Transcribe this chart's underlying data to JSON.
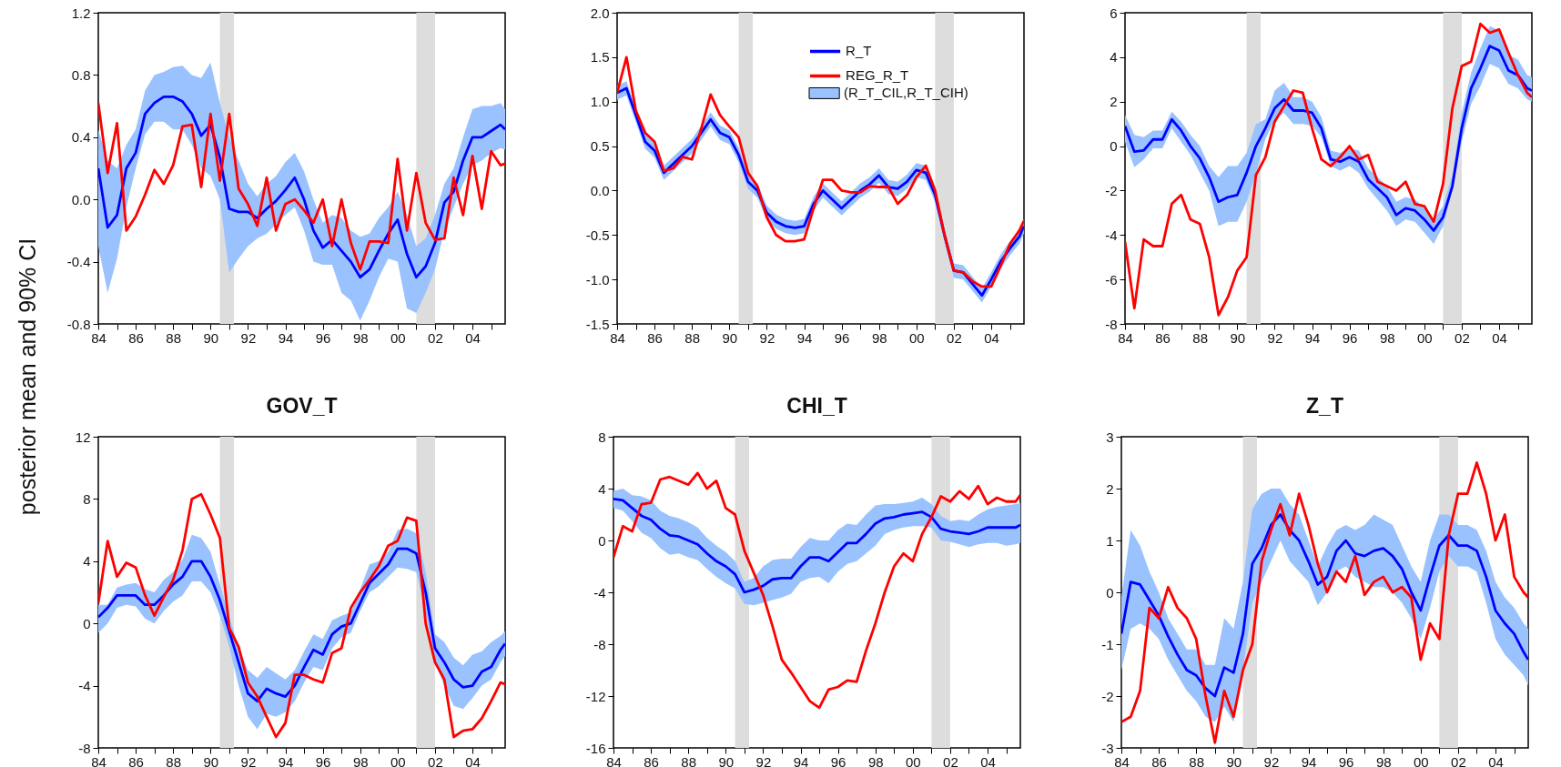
{
  "chart_data": [
    {
      "type": "line",
      "ylabel": "posterior mean and 90% CI",
      "x": [
        1984,
        1984.5,
        1985,
        1985.5,
        1986,
        1986.5,
        1987,
        1987.5,
        1988,
        1988.5,
        1989,
        1989.5,
        1990,
        1990.5,
        1991,
        1991.5,
        1992,
        1992.5,
        1993,
        1993.5,
        1994,
        1994.5,
        1995,
        1995.5,
        1996,
        1996.5,
        1997,
        1997.5,
        1998,
        1998.5,
        1999,
        1999.5,
        2000,
        2000.5,
        2001,
        2001.5,
        2002,
        2002.5,
        2003,
        2003.5,
        2004,
        2004.5,
        2005,
        2005.5,
        2005.75
      ],
      "xlim": [
        1984,
        2005.75
      ],
      "xticks": [
        {
          "value": 1984,
          "label": "84"
        },
        {
          "value": 1985,
          "label": null
        },
        {
          "value": 1986,
          "label": "86"
        },
        {
          "value": 1987,
          "label": null
        },
        {
          "value": 1988,
          "label": "88"
        },
        {
          "value": 1989,
          "label": null
        },
        {
          "value": 1990,
          "label": "90"
        },
        {
          "value": 1991,
          "label": null
        },
        {
          "value": 1992,
          "label": "92"
        },
        {
          "value": 1993,
          "label": null
        },
        {
          "value": 1994,
          "label": "94"
        },
        {
          "value": 1995,
          "label": null
        },
        {
          "value": 1996,
          "label": "96"
        },
        {
          "value": 1997,
          "label": null
        },
        {
          "value": 1998,
          "label": "98"
        },
        {
          "value": 1999,
          "label": null
        },
        {
          "value": 2000,
          "label": "00"
        },
        {
          "value": 2001,
          "label": null
        },
        {
          "value": 2002,
          "label": "02"
        },
        {
          "value": 2003,
          "label": null
        },
        {
          "value": 2004,
          "label": "04"
        },
        {
          "value": 2005,
          "label": null
        }
      ],
      "ylim": [
        -0.8,
        1.2
      ],
      "yticks": [
        1.2,
        0.8,
        0.4,
        {
          "value": 0,
          "label": "0.0"
        },
        -0.4,
        -0.8
      ],
      "bands": [
        {
          "axis": "x",
          "from": 1990.5,
          "to": 1991.25,
          "color": "#dddddd"
        },
        {
          "axis": "x",
          "from": 2001,
          "to": 2002,
          "color": "#dddddd"
        }
      ],
      "series": [
        {
          "color": "#0000ff",
          "values": [
            0.2,
            -0.18,
            -0.1,
            0.2,
            0.3,
            0.55,
            0.62,
            0.66,
            0.66,
            0.63,
            0.55,
            0.41,
            0.48,
            0.27,
            -0.06,
            -0.08,
            -0.08,
            -0.12,
            -0.06,
            -0.01,
            0.06,
            0.14,
            0.0,
            -0.2,
            -0.31,
            -0.26,
            -0.33,
            -0.4,
            -0.5,
            -0.45,
            -0.33,
            -0.22,
            -0.13,
            -0.35,
            -0.5,
            -0.43,
            -0.28,
            -0.02,
            0.05,
            0.25,
            0.4,
            0.4,
            0.44,
            0.48,
            0.45
          ],
          "lower": [
            -0.3,
            -0.6,
            -0.38,
            -0.05,
            0.2,
            0.42,
            0.5,
            0.5,
            0.45,
            0.45,
            0.35,
            0.2,
            0.15,
            0.0,
            -0.47,
            -0.38,
            -0.3,
            -0.25,
            -0.22,
            -0.16,
            -0.1,
            -0.05,
            -0.2,
            -0.4,
            -0.42,
            -0.42,
            -0.6,
            -0.65,
            -0.78,
            -0.65,
            -0.5,
            -0.38,
            -0.4,
            -0.7,
            -0.73,
            -0.6,
            -0.45,
            -0.2,
            -0.05,
            0.1,
            0.22,
            0.25,
            0.3,
            0.33,
            0.32
          ],
          "upper": [
            0.45,
            0.25,
            0.2,
            0.35,
            0.45,
            0.7,
            0.8,
            0.82,
            0.85,
            0.86,
            0.8,
            0.78,
            0.88,
            0.62,
            0.4,
            0.25,
            0.1,
            0.02,
            0.1,
            0.15,
            0.24,
            0.3,
            0.18,
            0.0,
            -0.15,
            -0.1,
            -0.12,
            -0.2,
            -0.24,
            -0.22,
            -0.12,
            -0.05,
            0.05,
            -0.1,
            -0.3,
            -0.25,
            -0.1,
            0.1,
            0.2,
            0.4,
            0.58,
            0.6,
            0.6,
            0.62,
            0.58
          ]
        },
        {
          "color": "#ff0000",
          "values": [
            0.62,
            0.17,
            0.49,
            -0.2,
            -0.11,
            0.03,
            0.19,
            0.1,
            0.22,
            0.47,
            0.48,
            0.08,
            0.55,
            0.12,
            0.55,
            0.07,
            -0.03,
            -0.17,
            0.14,
            -0.2,
            -0.03,
            0.0,
            -0.07,
            -0.15,
            0.0,
            -0.3,
            0.0,
            -0.28,
            -0.45,
            -0.27,
            -0.27,
            -0.28,
            0.26,
            -0.2,
            0.17,
            -0.15,
            -0.26,
            -0.25,
            0.14,
            -0.1,
            0.28,
            -0.06,
            0.31,
            0.22,
            0.23
          ]
        }
      ]
    },
    {
      "type": "line",
      "legend": "top",
      "annotations": [
        "(R_T_CIL,R_T_CIH)"
      ],
      "x": [
        1984,
        1984.5,
        1985,
        1985.5,
        1986,
        1986.5,
        1987,
        1987.5,
        1988,
        1988.5,
        1989,
        1989.5,
        1990,
        1990.5,
        1991,
        1991.5,
        1992,
        1992.5,
        1993,
        1993.5,
        1994,
        1994.5,
        1995,
        1995.5,
        1996,
        1996.5,
        1997,
        1997.5,
        1998,
        1998.5,
        1999,
        1999.5,
        2000,
        2000.5,
        2001,
        2001.5,
        2002,
        2002.5,
        2003,
        2003.5,
        2004,
        2004.5,
        2005,
        2005.5,
        2005.75
      ],
      "xlim": [
        1984,
        2005.75
      ],
      "xticks": [
        {
          "value": 1984,
          "label": "84"
        },
        {
          "value": 1985,
          "label": null
        },
        {
          "value": 1986,
          "label": "86"
        },
        {
          "value": 1987,
          "label": null
        },
        {
          "value": 1988,
          "label": "88"
        },
        {
          "value": 1989,
          "label": null
        },
        {
          "value": 1990,
          "label": "90"
        },
        {
          "value": 1991,
          "label": null
        },
        {
          "value": 1992,
          "label": "92"
        },
        {
          "value": 1993,
          "label": null
        },
        {
          "value": 1994,
          "label": "94"
        },
        {
          "value": 1995,
          "label": null
        },
        {
          "value": 1996,
          "label": "96"
        },
        {
          "value": 1997,
          "label": null
        },
        {
          "value": 1998,
          "label": "98"
        },
        {
          "value": 1999,
          "label": null
        },
        {
          "value": 2000,
          "label": "00"
        },
        {
          "value": 2001,
          "label": null
        },
        {
          "value": 2002,
          "label": "02"
        },
        {
          "value": 2003,
          "label": null
        },
        {
          "value": 2004,
          "label": "04"
        },
        {
          "value": 2005,
          "label": null
        }
      ],
      "ylim": [
        -1.5,
        2.0
      ],
      "yticks": [
        {
          "value": 2,
          "label": "2.0"
        },
        1.5,
        {
          "value": 1,
          "label": "1.0"
        },
        0.5,
        {
          "value": 0,
          "label": "0.0"
        },
        -0.5,
        {
          "value": -1,
          "label": "-1.0"
        },
        -1.5
      ],
      "bands": [
        {
          "axis": "x",
          "from": 1990.5,
          "to": 1991.25,
          "color": "#dddddd"
        },
        {
          "axis": "x",
          "from": 2001,
          "to": 2002,
          "color": "#dddddd"
        }
      ],
      "series": [
        {
          "name": "R_T",
          "color": "#0000ff",
          "values": [
            1.1,
            1.15,
            0.85,
            0.55,
            0.45,
            0.2,
            0.3,
            0.4,
            0.5,
            0.65,
            0.8,
            0.65,
            0.6,
            0.4,
            0.1,
            0.0,
            -0.25,
            -0.35,
            -0.4,
            -0.42,
            -0.4,
            -0.15,
            0.0,
            -0.1,
            -0.2,
            -0.1,
            0.0,
            0.07,
            0.17,
            0.04,
            0.02,
            0.1,
            0.23,
            0.2,
            -0.05,
            -0.5,
            -0.9,
            -0.92,
            -1.05,
            -1.18,
            -1.0,
            -0.8,
            -0.65,
            -0.52,
            -0.4
          ],
          "lower": [
            1.02,
            1.07,
            0.77,
            0.47,
            0.37,
            0.12,
            0.22,
            0.32,
            0.42,
            0.57,
            0.72,
            0.57,
            0.52,
            0.32,
            0.02,
            -0.08,
            -0.33,
            -0.43,
            -0.48,
            -0.5,
            -0.48,
            -0.23,
            -0.08,
            -0.18,
            -0.28,
            -0.18,
            -0.08,
            -0.01,
            0.09,
            -0.04,
            -0.06,
            0.02,
            0.15,
            0.12,
            -0.13,
            -0.58,
            -0.98,
            -1.0,
            -1.13,
            -1.26,
            -1.08,
            -0.88,
            -0.73,
            -0.6,
            -0.48
          ],
          "upper": [
            1.18,
            1.23,
            0.93,
            0.63,
            0.53,
            0.28,
            0.38,
            0.48,
            0.58,
            0.73,
            0.88,
            0.73,
            0.68,
            0.48,
            0.18,
            0.08,
            -0.17,
            -0.27,
            -0.32,
            -0.34,
            -0.32,
            -0.07,
            0.08,
            -0.02,
            -0.12,
            -0.02,
            0.08,
            0.15,
            0.25,
            0.12,
            0.1,
            0.18,
            0.31,
            0.28,
            0.03,
            -0.42,
            -0.82,
            -0.84,
            -0.97,
            -1.1,
            -0.92,
            -0.72,
            -0.57,
            -0.44,
            -0.32
          ]
        },
        {
          "name": "REG_R_T",
          "color": "#ff0000",
          "values": [
            1.1,
            1.5,
            0.9,
            0.65,
            0.55,
            0.22,
            0.25,
            0.38,
            0.35,
            0.7,
            1.08,
            0.85,
            0.72,
            0.6,
            0.2,
            0.05,
            -0.3,
            -0.5,
            -0.57,
            -0.57,
            -0.55,
            -0.2,
            0.12,
            0.12,
            0.0,
            -0.02,
            -0.02,
            0.05,
            0.04,
            0.04,
            -0.15,
            -0.05,
            0.15,
            0.28,
            0.0,
            -0.5,
            -0.9,
            -0.92,
            -1.02,
            -1.08,
            -1.08,
            -0.85,
            -0.6,
            -0.45,
            -0.34
          ]
        }
      ]
    },
    {
      "type": "line",
      "x": [
        1984,
        1984.5,
        1985,
        1985.5,
        1986,
        1986.5,
        1987,
        1987.5,
        1988,
        1988.5,
        1989,
        1989.5,
        1990,
        1990.5,
        1991,
        1991.5,
        1992,
        1992.5,
        1993,
        1993.5,
        1994,
        1994.5,
        1995,
        1995.5,
        1996,
        1996.5,
        1997,
        1997.5,
        1998,
        1998.5,
        1999,
        1999.5,
        2000,
        2000.5,
        2001,
        2001.5,
        2002,
        2002.5,
        2003,
        2003.5,
        2004,
        2004.5,
        2005,
        2005.5,
        2005.75
      ],
      "xlim": [
        1984,
        2005.75
      ],
      "xticks": [
        {
          "value": 1984,
          "label": "84"
        },
        {
          "value": 1985,
          "label": null
        },
        {
          "value": 1986,
          "label": "86"
        },
        {
          "value": 1987,
          "label": null
        },
        {
          "value": 1988,
          "label": "88"
        },
        {
          "value": 1989,
          "label": null
        },
        {
          "value": 1990,
          "label": "90"
        },
        {
          "value": 1991,
          "label": null
        },
        {
          "value": 1992,
          "label": "92"
        },
        {
          "value": 1993,
          "label": null
        },
        {
          "value": 1994,
          "label": "94"
        },
        {
          "value": 1995,
          "label": null
        },
        {
          "value": 1996,
          "label": "96"
        },
        {
          "value": 1997,
          "label": null
        },
        {
          "value": 1998,
          "label": "98"
        },
        {
          "value": 1999,
          "label": null
        },
        {
          "value": 2000,
          "label": "00"
        },
        {
          "value": 2001,
          "label": null
        },
        {
          "value": 2002,
          "label": "02"
        },
        {
          "value": 2003,
          "label": null
        },
        {
          "value": 2004,
          "label": "04"
        },
        {
          "value": 2005,
          "label": null
        }
      ],
      "ylim": [
        -8,
        6
      ],
      "yticks": [
        6,
        4,
        2,
        0,
        -2,
        -4,
        -6,
        -8
      ],
      "bands": [
        {
          "axis": "x",
          "from": 1990.5,
          "to": 1991.25,
          "color": "#dddddd"
        },
        {
          "axis": "x",
          "from": 2001,
          "to": 2002,
          "color": "#dddddd"
        }
      ],
      "series": [
        {
          "color": "#0000ff",
          "values": [
            0.9,
            -0.25,
            -0.2,
            0.3,
            0.3,
            1.2,
            0.7,
            0.0,
            -0.55,
            -1.4,
            -2.5,
            -2.3,
            -2.2,
            -1.2,
            0.0,
            0.8,
            1.7,
            2.1,
            1.6,
            1.6,
            1.5,
            0.8,
            -0.6,
            -0.7,
            -0.5,
            -0.7,
            -1.5,
            -1.9,
            -2.3,
            -3.1,
            -2.8,
            -2.9,
            -3.3,
            -3.8,
            -3.2,
            -1.8,
            0.8,
            2.6,
            3.5,
            4.5,
            4.3,
            3.4,
            3.2,
            2.6,
            2.5
          ],
          "lower": [
            0.2,
            -0.95,
            -0.6,
            -0.1,
            -0.1,
            0.8,
            0.2,
            -0.4,
            -1.2,
            -2.0,
            -3.6,
            -3.4,
            -3.4,
            -2.5,
            -1.2,
            0.3,
            1.2,
            1.5,
            1.0,
            1.0,
            0.9,
            0.4,
            -0.9,
            -1.1,
            -0.9,
            -1.2,
            -1.9,
            -2.4,
            -2.9,
            -3.6,
            -3.3,
            -3.4,
            -3.9,
            -4.4,
            -3.6,
            -2.0,
            0.2,
            1.9,
            2.7,
            3.7,
            3.5,
            2.8,
            2.6,
            2.1,
            2.0
          ],
          "upper": [
            1.4,
            0.5,
            0.4,
            0.7,
            0.7,
            1.55,
            1.1,
            0.5,
            0.0,
            -0.9,
            -1.4,
            -0.9,
            -0.9,
            -0.3,
            1.0,
            1.2,
            2.5,
            2.85,
            2.2,
            2.2,
            2.0,
            1.3,
            -0.2,
            -0.3,
            -0.1,
            -0.2,
            -1.0,
            -1.4,
            -1.8,
            -2.5,
            -2.3,
            -2.4,
            -2.8,
            -3.3,
            -2.7,
            -1.3,
            1.5,
            3.3,
            4.4,
            5.4,
            5.2,
            4.1,
            3.9,
            3.2,
            3.1
          ]
        },
        {
          "color": "#ff0000",
          "values": [
            -4.3,
            -7.3,
            -4.2,
            -4.5,
            -4.5,
            -2.6,
            -2.2,
            -3.3,
            -3.5,
            -5.0,
            -7.6,
            -6.8,
            -5.6,
            -5.0,
            -1.3,
            -0.5,
            1.1,
            1.8,
            2.5,
            2.4,
            0.8,
            -0.6,
            -0.9,
            -0.5,
            0.0,
            -0.6,
            -0.4,
            -1.6,
            -1.8,
            -2.0,
            -1.6,
            -2.6,
            -2.7,
            -3.4,
            -1.7,
            1.7,
            3.6,
            3.8,
            5.5,
            5.1,
            5.25,
            4.2,
            3.2,
            2.4,
            2.2
          ]
        }
      ]
    },
    {
      "type": "line",
      "title": "GOV_T",
      "x": [
        1984,
        1984.5,
        1985,
        1985.5,
        1986,
        1986.5,
        1987,
        1987.5,
        1988,
        1988.5,
        1989,
        1989.5,
        1990,
        1990.5,
        1991,
        1991.5,
        1992,
        1992.5,
        1993,
        1993.5,
        1994,
        1994.5,
        1995,
        1995.5,
        1996,
        1996.5,
        1997,
        1997.5,
        1998,
        1998.5,
        1999,
        1999.5,
        2000,
        2000.5,
        2001,
        2001.5,
        2002,
        2002.5,
        2003,
        2003.5,
        2004,
        2004.5,
        2005,
        2005.5,
        2005.75
      ],
      "xlim": [
        1984,
        2005.75
      ],
      "xticks": [
        {
          "value": 1984,
          "label": "84"
        },
        {
          "value": 1985,
          "label": null
        },
        {
          "value": 1986,
          "label": "86"
        },
        {
          "value": 1987,
          "label": null
        },
        {
          "value": 1988,
          "label": "88"
        },
        {
          "value": 1989,
          "label": null
        },
        {
          "value": 1990,
          "label": "90"
        },
        {
          "value": 1991,
          "label": null
        },
        {
          "value": 1992,
          "label": "92"
        },
        {
          "value": 1993,
          "label": null
        },
        {
          "value": 1994,
          "label": "94"
        },
        {
          "value": 1995,
          "label": null
        },
        {
          "value": 1996,
          "label": "96"
        },
        {
          "value": 1997,
          "label": null
        },
        {
          "value": 1998,
          "label": "98"
        },
        {
          "value": 1999,
          "label": null
        },
        {
          "value": 2000,
          "label": "00"
        },
        {
          "value": 2001,
          "label": null
        },
        {
          "value": 2002,
          "label": "02"
        },
        {
          "value": 2003,
          "label": null
        },
        {
          "value": 2004,
          "label": "04"
        },
        {
          "value": 2005,
          "label": null
        }
      ],
      "ylim": [
        -8,
        12
      ],
      "yticks": [
        12,
        8,
        4,
        0,
        -4,
        -8
      ],
      "bands": [
        {
          "axis": "x",
          "from": 1990.5,
          "to": 1991.25,
          "color": "#dddddd"
        },
        {
          "axis": "x",
          "from": 2001,
          "to": 2002,
          "color": "#dddddd"
        }
      ],
      "series": [
        {
          "color": "#0000ff",
          "values": [
            0.4,
            1.0,
            1.8,
            1.8,
            1.8,
            1.2,
            1.2,
            1.8,
            2.5,
            3.0,
            4.0,
            4.0,
            3.0,
            1.5,
            -0.5,
            -2.5,
            -4.5,
            -5.0,
            -4.2,
            -4.5,
            -4.7,
            -4.0,
            -2.8,
            -1.7,
            -2.0,
            -0.7,
            -0.2,
            0.0,
            1.3,
            2.6,
            3.2,
            3.8,
            4.8,
            4.8,
            4.5,
            2.0,
            -1.6,
            -2.5,
            -3.6,
            -4.1,
            -4.0,
            -3.1,
            -2.8,
            -1.7,
            -1.3
          ],
          "lower": [
            -0.6,
            0.0,
            1.0,
            1.2,
            1.1,
            0.3,
            0.0,
            0.8,
            1.4,
            1.8,
            2.7,
            2.7,
            2.0,
            0.5,
            -1.5,
            -4.0,
            -6.0,
            -6.8,
            -5.8,
            -6.0,
            -5.7,
            -5.0,
            -3.8,
            -2.8,
            -3.0,
            -1.6,
            -0.9,
            -0.6,
            0.8,
            2.0,
            2.4,
            3.0,
            3.6,
            3.5,
            3.3,
            0.8,
            -2.5,
            -4.0,
            -5.3,
            -5.5,
            -4.8,
            -4.0,
            -3.6,
            -2.5,
            -2.1
          ],
          "upper": [
            1.2,
            1.2,
            2.3,
            2.5,
            2.6,
            2.2,
            2.0,
            2.8,
            3.3,
            4.1,
            5.7,
            5.5,
            4.6,
            2.5,
            0.4,
            -1.5,
            -3.0,
            -3.5,
            -2.8,
            -3.2,
            -3.6,
            -3.0,
            -1.8,
            -0.7,
            -1.0,
            0.2,
            0.5,
            0.7,
            2.2,
            3.8,
            4.0,
            4.6,
            6.0,
            6.1,
            5.8,
            3.3,
            -0.7,
            -1.2,
            -2.2,
            -2.7,
            -2.0,
            -1.8,
            -1.2,
            -0.8,
            -0.5
          ]
        },
        {
          "color": "#ff0000",
          "values": [
            1.3,
            5.3,
            3.0,
            3.9,
            3.6,
            1.8,
            0.5,
            1.7,
            2.8,
            4.7,
            8.0,
            8.3,
            7.0,
            5.5,
            -0.3,
            -1.5,
            -3.8,
            -4.7,
            -6.0,
            -7.3,
            -6.4,
            -3.3,
            -3.3,
            -3.6,
            -3.8,
            -1.9,
            -1.6,
            1.0,
            2.0,
            2.8,
            3.7,
            5.0,
            5.3,
            6.8,
            6.6,
            0.0,
            -2.5,
            -3.6,
            -7.3,
            -6.9,
            -6.8,
            -6.1,
            -5.0,
            -3.8,
            -3.9
          ]
        }
      ]
    },
    {
      "type": "line",
      "title": "CHI_T",
      "x": [
        1984,
        1984.5,
        1985,
        1985.5,
        1986,
        1986.5,
        1987,
        1987.5,
        1988,
        1988.5,
        1989,
        1989.5,
        1990,
        1990.5,
        1991,
        1991.5,
        1992,
        1992.5,
        1993,
        1993.5,
        1994,
        1994.5,
        1995,
        1995.5,
        1996,
        1996.5,
        1997,
        1997.5,
        1998,
        1998.5,
        1999,
        1999.5,
        2000,
        2000.5,
        2001,
        2001.5,
        2002,
        2002.5,
        2003,
        2003.5,
        2004,
        2004.5,
        2005,
        2005.5,
        2005.75
      ],
      "xlim": [
        1984,
        2005.75
      ],
      "xticks": [
        {
          "value": 1984,
          "label": "84"
        },
        {
          "value": 1985,
          "label": null
        },
        {
          "value": 1986,
          "label": "86"
        },
        {
          "value": 1987,
          "label": null
        },
        {
          "value": 1988,
          "label": "88"
        },
        {
          "value": 1989,
          "label": null
        },
        {
          "value": 1990,
          "label": "90"
        },
        {
          "value": 1991,
          "label": null
        },
        {
          "value": 1992,
          "label": "92"
        },
        {
          "value": 1993,
          "label": null
        },
        {
          "value": 1994,
          "label": "94"
        },
        {
          "value": 1995,
          "label": null
        },
        {
          "value": 1996,
          "label": "96"
        },
        {
          "value": 1997,
          "label": null
        },
        {
          "value": 1998,
          "label": "98"
        },
        {
          "value": 1999,
          "label": null
        },
        {
          "value": 2000,
          "label": "00"
        },
        {
          "value": 2001,
          "label": null
        },
        {
          "value": 2002,
          "label": "02"
        },
        {
          "value": 2003,
          "label": null
        },
        {
          "value": 2004,
          "label": "04"
        },
        {
          "value": 2005,
          "label": null
        }
      ],
      "ylim": [
        -16,
        8
      ],
      "yticks": [
        8,
        4,
        0,
        -4,
        -8,
        -12,
        -16
      ],
      "bands": [
        {
          "axis": "x",
          "from": 1990.5,
          "to": 1991.25,
          "color": "#dddddd"
        },
        {
          "axis": "x",
          "from": 2001,
          "to": 2002,
          "color": "#dddddd"
        }
      ],
      "series": [
        {
          "color": "#0000ff",
          "values": [
            3.2,
            3.1,
            2.5,
            1.9,
            1.6,
            0.9,
            0.4,
            0.3,
            0.0,
            -0.3,
            -1.0,
            -1.6,
            -2.0,
            -2.6,
            -4.0,
            -3.8,
            -3.5,
            -3.0,
            -2.9,
            -2.9,
            -2.0,
            -1.3,
            -1.3,
            -1.6,
            -0.9,
            -0.2,
            -0.2,
            0.5,
            1.3,
            1.7,
            1.8,
            2.0,
            2.1,
            2.2,
            1.8,
            0.9,
            0.7,
            0.6,
            0.5,
            0.7,
            1.0,
            1.0,
            1.0,
            1.0,
            1.2
          ],
          "lower": [
            2.5,
            2.3,
            1.5,
            0.6,
            0.2,
            -0.6,
            -1.1,
            -1.0,
            -1.3,
            -1.5,
            -2.2,
            -2.8,
            -3.3,
            -3.7,
            -4.9,
            -5.0,
            -4.8,
            -4.6,
            -4.4,
            -4.1,
            -3.2,
            -2.9,
            -2.8,
            -3.3,
            -2.4,
            -1.8,
            -1.6,
            -1.0,
            -0.4,
            0.5,
            0.8,
            1.0,
            1.1,
            1.1,
            1.0,
            0.0,
            -0.1,
            -0.3,
            -0.5,
            -0.3,
            -0.2,
            -0.2,
            -0.4,
            -0.3,
            -0.2
          ],
          "upper": [
            3.8,
            4.0,
            3.5,
            3.4,
            3.1,
            2.3,
            1.9,
            1.7,
            1.4,
            1.0,
            0.2,
            -0.4,
            -0.9,
            -1.6,
            -3.2,
            -2.9,
            -2.0,
            -1.5,
            -1.4,
            -1.4,
            -0.5,
            0.2,
            0.0,
            0.0,
            0.8,
            1.3,
            1.2,
            2.0,
            2.7,
            2.8,
            2.8,
            2.9,
            3.0,
            3.3,
            2.8,
            1.9,
            1.5,
            1.6,
            1.5,
            2.0,
            2.4,
            2.6,
            2.7,
            2.8,
            2.9
          ]
        },
        {
          "color": "#ff0000",
          "values": [
            -1.3,
            1.1,
            0.7,
            2.8,
            2.9,
            4.7,
            4.9,
            4.6,
            4.3,
            5.2,
            4.0,
            4.6,
            2.5,
            2.0,
            -0.8,
            -2.5,
            -4.2,
            -6.6,
            -9.2,
            -10.2,
            -11.3,
            -12.4,
            -12.9,
            -11.5,
            -11.3,
            -10.8,
            -10.9,
            -8.5,
            -6.4,
            -4.0,
            -2.0,
            -1.0,
            -1.6,
            0.5,
            1.8,
            3.4,
            3.0,
            3.8,
            3.2,
            4.2,
            2.8,
            3.3,
            3.0,
            3.0,
            3.5
          ]
        }
      ]
    },
    {
      "type": "line",
      "title": "Z_T",
      "x": [
        1984,
        1984.5,
        1985,
        1985.5,
        1986,
        1986.5,
        1987,
        1987.5,
        1988,
        1988.5,
        1989,
        1989.5,
        1990,
        1990.5,
        1991,
        1991.5,
        1992,
        1992.5,
        1993,
        1993.5,
        1994,
        1994.5,
        1995,
        1995.5,
        1996,
        1996.5,
        1997,
        1997.5,
        1998,
        1998.5,
        1999,
        1999.5,
        2000,
        2000.5,
        2001,
        2001.5,
        2002,
        2002.5,
        2003,
        2003.5,
        2004,
        2004.5,
        2005,
        2005.5,
        2005.75
      ],
      "xlim": [
        1984,
        2005.75
      ],
      "xticks": [
        {
          "value": 1984,
          "label": "84"
        },
        {
          "value": 1985,
          "label": null
        },
        {
          "value": 1986,
          "label": "86"
        },
        {
          "value": 1987,
          "label": null
        },
        {
          "value": 1988,
          "label": "88"
        },
        {
          "value": 1989,
          "label": null
        },
        {
          "value": 1990,
          "label": "90"
        },
        {
          "value": 1991,
          "label": null
        },
        {
          "value": 1992,
          "label": "92"
        },
        {
          "value": 1993,
          "label": null
        },
        {
          "value": 1994,
          "label": "94"
        },
        {
          "value": 1995,
          "label": null
        },
        {
          "value": 1996,
          "label": "96"
        },
        {
          "value": 1997,
          "label": null
        },
        {
          "value": 1998,
          "label": "98"
        },
        {
          "value": 1999,
          "label": null
        },
        {
          "value": 2000,
          "label": "00"
        },
        {
          "value": 2001,
          "label": null
        },
        {
          "value": 2002,
          "label": "02"
        },
        {
          "value": 2003,
          "label": null
        },
        {
          "value": 2004,
          "label": "04"
        },
        {
          "value": 2005,
          "label": null
        }
      ],
      "ylim": [
        -3,
        3
      ],
      "yticks": [
        3,
        2,
        1,
        0,
        -1,
        -2,
        -3
      ],
      "bands": [
        {
          "axis": "x",
          "from": 1990.5,
          "to": 1991.25,
          "color": "#dddddd"
        },
        {
          "axis": "x",
          "from": 2001,
          "to": 2002,
          "color": "#dddddd"
        }
      ],
      "series": [
        {
          "color": "#0000ff",
          "values": [
            -0.8,
            0.2,
            0.15,
            -0.15,
            -0.45,
            -0.85,
            -1.2,
            -1.5,
            -1.6,
            -1.85,
            -2.0,
            -1.45,
            -1.55,
            -0.8,
            0.55,
            0.85,
            1.3,
            1.5,
            1.2,
            1.0,
            0.6,
            0.15,
            0.3,
            0.8,
            1.0,
            0.75,
            0.7,
            0.8,
            0.85,
            0.7,
            0.45,
            0.0,
            -0.35,
            0.3,
            0.9,
            1.1,
            0.9,
            0.9,
            0.8,
            0.3,
            -0.35,
            -0.6,
            -0.8,
            -1.15,
            -1.3
          ],
          "lower": [
            -1.5,
            -0.7,
            -0.6,
            -0.7,
            -0.9,
            -1.3,
            -1.6,
            -1.9,
            -2.1,
            -2.4,
            -2.5,
            -2.2,
            -2.5,
            -1.5,
            -0.2,
            0.2,
            0.6,
            1.0,
            0.6,
            0.4,
            0.2,
            -0.25,
            0.0,
            0.4,
            0.5,
            0.3,
            0.2,
            0.1,
            0.1,
            0.0,
            -0.2,
            -0.5,
            -0.9,
            -0.3,
            0.4,
            0.7,
            0.5,
            0.5,
            0.4,
            -0.2,
            -0.9,
            -1.2,
            -1.4,
            -1.6,
            -1.8
          ],
          "upper": [
            -0.1,
            1.2,
            0.9,
            0.4,
            0.0,
            -0.5,
            -0.8,
            -1.1,
            -1.1,
            -1.4,
            -1.4,
            -0.5,
            -0.7,
            0.2,
            1.6,
            1.9,
            2.0,
            2.0,
            1.7,
            1.5,
            1.0,
            0.5,
            0.9,
            1.2,
            1.3,
            1.2,
            1.3,
            1.5,
            1.4,
            1.3,
            0.9,
            0.5,
            0.2,
            1.0,
            1.5,
            1.5,
            1.3,
            1.3,
            1.2,
            0.8,
            0.2,
            -0.1,
            -0.3,
            -0.6,
            -0.7
          ]
        },
        {
          "color": "#ff0000",
          "values": [
            -2.5,
            -2.4,
            -1.9,
            -0.3,
            -0.5,
            0.1,
            -0.3,
            -0.5,
            -0.9,
            -2.0,
            -2.9,
            -1.9,
            -2.4,
            -1.5,
            -1.0,
            0.6,
            1.2,
            1.7,
            1.1,
            1.9,
            1.3,
            0.55,
            0.0,
            0.4,
            0.2,
            0.7,
            -0.05,
            0.2,
            0.3,
            0.0,
            0.1,
            -0.1,
            -1.3,
            -0.6,
            -0.9,
            1.1,
            1.9,
            1.9,
            2.5,
            1.9,
            1.0,
            1.5,
            0.3,
            0.0,
            -0.1
          ]
        }
      ]
    }
  ]
}
